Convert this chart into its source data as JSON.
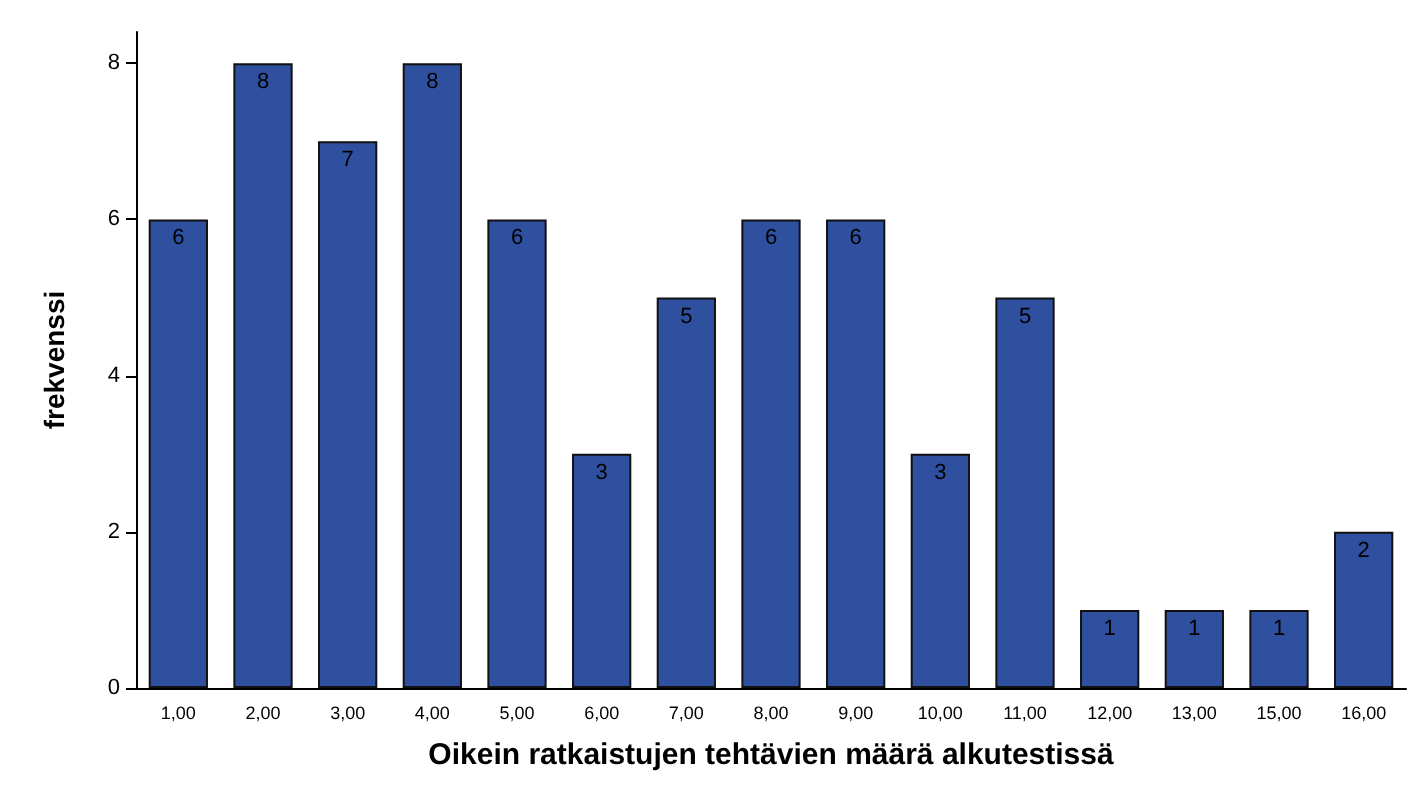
{
  "chart_data": {
    "type": "bar",
    "xlabel": "Oikein ratkaistujen tehtävien määrä alkutestissä",
    "ylabel": "frekvenssi",
    "categories": [
      "1,00",
      "2,00",
      "3,00",
      "4,00",
      "5,00",
      "6,00",
      "7,00",
      "8,00",
      "9,00",
      "10,00",
      "11,00",
      "12,00",
      "13,00",
      "15,00",
      "16,00"
    ],
    "values": [
      6,
      8,
      7,
      8,
      6,
      3,
      5,
      6,
      6,
      3,
      5,
      1,
      1,
      1,
      2
    ],
    "color": "#2f4f9f",
    "ylim": [
      0,
      8.4
    ],
    "yticks": [
      0,
      2,
      4,
      6,
      8
    ],
    "data_labels": true,
    "grid": false
  }
}
